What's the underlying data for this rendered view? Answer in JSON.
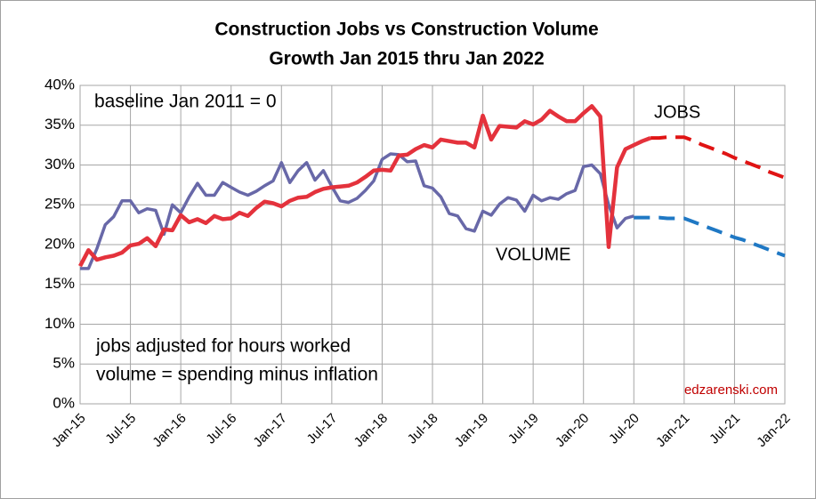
{
  "chart_data": {
    "type": "line",
    "title": "Construction Jobs vs Construction Volume",
    "subtitle": "Growth Jan 2015 thru Jan 2022",
    "annotations": [
      "baseline Jan 2011 = 0",
      "jobs adjusted for hours worked",
      "volume = spending minus inflation",
      "edzarenski.com"
    ],
    "categories": [
      "Jan-15",
      null,
      null,
      null,
      null,
      null,
      "Jul-15",
      null,
      null,
      null,
      null,
      null,
      "Jan-16",
      null,
      null,
      null,
      null,
      null,
      "Jul-16",
      null,
      null,
      null,
      null,
      null,
      "Jan-17",
      null,
      null,
      null,
      null,
      null,
      "Jul-17",
      null,
      null,
      null,
      null,
      null,
      "Jan-18",
      null,
      null,
      null,
      null,
      null,
      "Jul-18",
      null,
      null,
      null,
      null,
      null,
      "Jan-19",
      null,
      null,
      null,
      null,
      null,
      "Jul-19",
      null,
      null,
      null,
      null,
      null,
      "Jan-20",
      null,
      null,
      null,
      null,
      null,
      "Jul-20",
      null,
      null,
      null,
      null,
      null,
      "Jan-21",
      null,
      null,
      null,
      null,
      null,
      "Jul-21",
      null,
      null,
      null,
      null,
      null,
      "Jan-22"
    ],
    "ylim": [
      0,
      40
    ],
    "yticks": [
      {
        "value": 0,
        "label": "0%"
      },
      {
        "value": 5,
        "label": "5%"
      },
      {
        "value": 10,
        "label": "10%"
      },
      {
        "value": 15,
        "label": "15%"
      },
      {
        "value": 20,
        "label": "20%"
      },
      {
        "value": 25,
        "label": "25%"
      },
      {
        "value": 30,
        "label": "30%"
      },
      {
        "value": 35,
        "label": "35%"
      },
      {
        "value": 40,
        "label": "40%"
      }
    ],
    "grid": true,
    "series": [
      {
        "name": "VOLUME",
        "color": "#6868a8",
        "values": [
          17,
          17,
          19.5,
          22.5,
          23.5,
          25.5,
          25.5,
          24,
          24.5,
          24.3,
          21.3,
          25,
          24,
          26,
          27.7,
          26.2,
          26.2,
          27.8,
          27.2,
          26.6,
          26.2,
          26.7,
          27.4,
          28,
          30.3,
          27.8,
          29.3,
          30.3,
          28.1,
          29.3,
          27.3,
          25.5,
          25.3,
          25.8,
          26.8,
          28,
          30.7,
          31.4,
          31.3,
          30.4,
          30.5,
          27.4,
          27.1,
          26,
          23.9,
          23.6,
          22,
          21.7,
          24.2,
          23.7,
          25.1,
          25.9,
          25.6,
          24.2,
          26.2,
          25.5,
          25.9,
          25.7,
          26.4,
          26.8,
          29.8,
          30,
          28.9,
          25,
          22.1,
          23.3,
          23.6,
          null,
          null,
          null,
          null,
          null,
          null,
          null,
          null,
          null,
          null,
          null,
          null,
          null,
          null,
          null,
          null,
          null,
          null
        ]
      },
      {
        "name": "JOBS",
        "color": "#e4323c",
        "values": [
          17.3,
          19.3,
          18.1,
          18.4,
          18.6,
          19,
          19.9,
          20.1,
          20.8,
          19.8,
          21.9,
          21.8,
          23.7,
          22.8,
          23.2,
          22.7,
          23.6,
          23.2,
          23.3,
          24,
          23.6,
          24.6,
          25.4,
          25.2,
          24.8,
          25.5,
          25.9,
          26,
          26.6,
          27,
          27.2,
          27.3,
          27.4,
          27.8,
          28.5,
          29.3,
          29.4,
          29.3,
          31.2,
          31.3,
          32,
          32.5,
          32.2,
          33.2,
          33,
          32.8,
          32.8,
          32.2,
          36.2,
          33.2,
          34.9,
          34.8,
          34.7,
          35.5,
          35.1,
          35.7,
          36.8,
          36.1,
          35.5,
          35.5,
          36.5,
          37.4,
          36.1,
          19.7,
          29.7,
          32,
          32.5,
          33,
          33.4,
          null,
          null,
          null,
          null,
          null,
          null,
          null,
          null,
          null,
          null,
          null,
          null,
          null,
          null,
          null,
          null
        ]
      },
      {
        "color": "#1f78c4",
        "dashed": true,
        "values": [
          null,
          null,
          null,
          null,
          null,
          null,
          null,
          null,
          null,
          null,
          null,
          null,
          null,
          null,
          null,
          null,
          null,
          null,
          null,
          null,
          null,
          null,
          null,
          null,
          null,
          null,
          null,
          null,
          null,
          null,
          null,
          null,
          null,
          null,
          null,
          null,
          null,
          null,
          null,
          null,
          null,
          null,
          null,
          null,
          null,
          null,
          null,
          null,
          null,
          null,
          null,
          null,
          null,
          null,
          null,
          null,
          null,
          null,
          null,
          null,
          null,
          null,
          null,
          null,
          null,
          null,
          23.4,
          23.4,
          23.4,
          23.4,
          23.3,
          23.3,
          23.3,
          22.9,
          22.5,
          22.1,
          21.7,
          21.3,
          20.9,
          20.6,
          20.2,
          19.8,
          19.4,
          19,
          18.6
        ]
      },
      {
        "color": "#e01414",
        "dashed": true,
        "values": [
          null,
          null,
          null,
          null,
          null,
          null,
          null,
          null,
          null,
          null,
          null,
          null,
          null,
          null,
          null,
          null,
          null,
          null,
          null,
          null,
          null,
          null,
          null,
          null,
          null,
          null,
          null,
          null,
          null,
          null,
          null,
          null,
          null,
          null,
          null,
          null,
          null,
          null,
          null,
          null,
          null,
          null,
          null,
          null,
          null,
          null,
          null,
          null,
          null,
          null,
          null,
          null,
          null,
          null,
          null,
          null,
          null,
          null,
          null,
          null,
          null,
          null,
          null,
          null,
          null,
          null,
          null,
          null,
          33.4,
          33.4,
          33.5,
          33.5,
          33.5,
          33.1,
          32.6,
          32.2,
          31.8,
          31.4,
          30.9,
          30.5,
          30.1,
          29.7,
          29.2,
          28.8,
          28.4
        ]
      }
    ]
  }
}
